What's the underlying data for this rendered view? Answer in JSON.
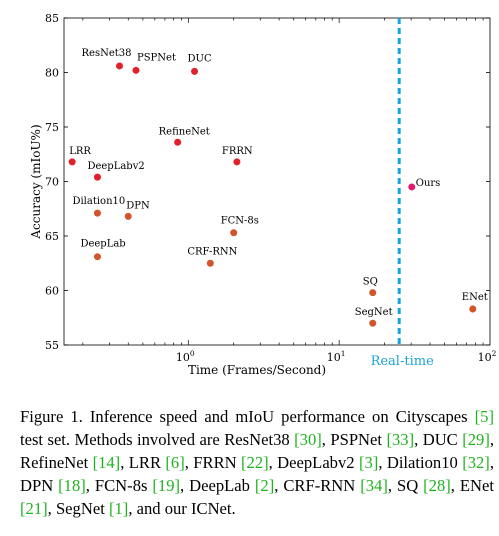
{
  "chart_data": {
    "type": "scatter",
    "x_scale": "log",
    "xlim": [
      0.15,
      100
    ],
    "ylim": [
      55,
      85
    ],
    "xlabel": "Time (Frames/Second)",
    "ylabel": "Accuracy (mIoU%)",
    "grid": false,
    "x_ticks": [
      {
        "value": 1,
        "label": "10",
        "exp": "0"
      },
      {
        "value": 10,
        "label": "10",
        "exp": "1"
      },
      {
        "value": 100,
        "label": "10",
        "exp": "2"
      }
    ],
    "y_ticks": [
      "55",
      "60",
      "65",
      "70",
      "75",
      "80",
      "85"
    ],
    "reference_line": {
      "x": 25,
      "label": "Real-time",
      "color": "#1ca3d9"
    },
    "colors": {
      "high": "#e0202b",
      "mid": "#d2542a",
      "ours": "#e01a6c"
    },
    "points": [
      {
        "name": "ResNet38",
        "x": 0.35,
        "y": 80.6,
        "group": "high"
      },
      {
        "name": "PSPNet",
        "x": 0.45,
        "y": 80.2,
        "group": "high"
      },
      {
        "name": "DUC",
        "x": 1.1,
        "y": 80.1,
        "group": "high"
      },
      {
        "name": "RefineNet",
        "x": 0.85,
        "y": 73.6,
        "group": "high"
      },
      {
        "name": "LRR",
        "x": 0.17,
        "y": 71.8,
        "group": "high"
      },
      {
        "name": "DeepLabv2",
        "x": 0.25,
        "y": 70.4,
        "group": "high"
      },
      {
        "name": "FRRN",
        "x": 2.1,
        "y": 71.8,
        "group": "high"
      },
      {
        "name": "Dilation10",
        "x": 0.25,
        "y": 67.1,
        "group": "mid"
      },
      {
        "name": "DPN",
        "x": 0.4,
        "y": 66.8,
        "group": "mid"
      },
      {
        "name": "FCN-8s",
        "x": 2.0,
        "y": 65.3,
        "group": "mid"
      },
      {
        "name": "DeepLab",
        "x": 0.25,
        "y": 63.1,
        "group": "mid"
      },
      {
        "name": "CRF-RNN",
        "x": 1.4,
        "y": 62.5,
        "group": "mid"
      },
      {
        "name": "SQ",
        "x": 16.7,
        "y": 59.8,
        "group": "mid"
      },
      {
        "name": "SegNet",
        "x": 16.7,
        "y": 57.0,
        "group": "mid"
      },
      {
        "name": "ENet",
        "x": 76.9,
        "y": 58.3,
        "group": "mid"
      },
      {
        "name": "Ours",
        "x": 30.3,
        "y": 69.5,
        "group": "ours"
      }
    ]
  },
  "caption": [
    {
      "t": "Figure 1. Inference speed and mIoU performance on Cityscapes "
    },
    {
      "t": "[5]",
      "ref": true
    },
    {
      "t": " test set. Methods involved are ResNet38 "
    },
    {
      "t": "[30]",
      "ref": true
    },
    {
      "t": ", PSPNet "
    },
    {
      "t": "[33]",
      "ref": true
    },
    {
      "t": ", DUC "
    },
    {
      "t": "[29]",
      "ref": true
    },
    {
      "t": ", RefineNet "
    },
    {
      "t": "[14]",
      "ref": true
    },
    {
      "t": ", LRR "
    },
    {
      "t": "[6]",
      "ref": true
    },
    {
      "t": ", FRRN "
    },
    {
      "t": "[22]",
      "ref": true
    },
    {
      "t": ", DeepLabv2 "
    },
    {
      "t": "[3]",
      "ref": true
    },
    {
      "t": ", Dilation10 "
    },
    {
      "t": "[32]",
      "ref": true
    },
    {
      "t": ", DPN "
    },
    {
      "t": "[18]",
      "ref": true
    },
    {
      "t": ", FCN-8s "
    },
    {
      "t": "[19]",
      "ref": true
    },
    {
      "t": ", DeepLab "
    },
    {
      "t": "[2]",
      "ref": true
    },
    {
      "t": ", CRF-RNN "
    },
    {
      "t": "[34]",
      "ref": true
    },
    {
      "t": ", SQ "
    },
    {
      "t": "[28]",
      "ref": true
    },
    {
      "t": ", ENet "
    },
    {
      "t": "[21]",
      "ref": true
    },
    {
      "t": ", SegNet "
    },
    {
      "t": "[1]",
      "ref": true
    },
    {
      "t": ", and our ICNet."
    }
  ]
}
